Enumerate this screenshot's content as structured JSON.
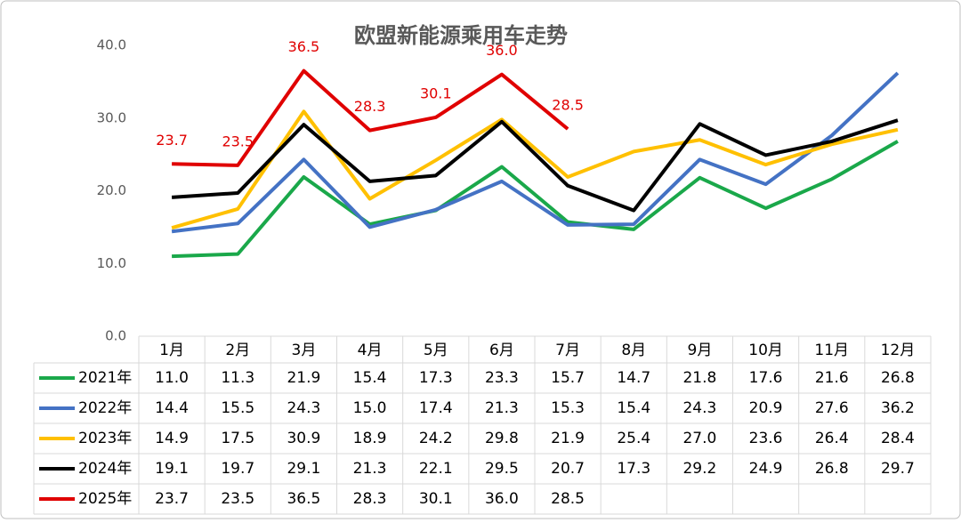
{
  "chart_data": {
    "type": "line",
    "title": "欧盟新能源乘用车走势",
    "categories": [
      "1月",
      "2月",
      "3月",
      "4月",
      "5月",
      "6月",
      "7月",
      "8月",
      "9月",
      "10月",
      "11月",
      "12月"
    ],
    "ylim": [
      0,
      40
    ],
    "yticks": [
      {
        "value": 0,
        "label": "0.0"
      },
      {
        "value": 10,
        "label": "10.0"
      },
      {
        "value": 20,
        "label": "20.0"
      },
      {
        "value": 30,
        "label": "30.0"
      },
      {
        "value": 40,
        "label": "40.0"
      }
    ],
    "series": [
      {
        "name": "2021年",
        "color": "#1aa84a",
        "values": [
          11.0,
          11.3,
          21.9,
          15.4,
          17.3,
          23.3,
          15.7,
          14.7,
          21.8,
          17.6,
          21.6,
          26.8
        ],
        "value_labels": [
          "11.0",
          "11.3",
          "21.9",
          "15.4",
          "17.3",
          "23.3",
          "15.7",
          "14.7",
          "21.8",
          "17.6",
          "21.6",
          "26.8"
        ]
      },
      {
        "name": "2022年",
        "color": "#4472c4",
        "values": [
          14.4,
          15.5,
          24.3,
          15.0,
          17.4,
          21.3,
          15.3,
          15.4,
          24.3,
          20.9,
          27.6,
          36.2
        ],
        "value_labels": [
          "14.4",
          "15.5",
          "24.3",
          "15.0",
          "17.4",
          "21.3",
          "15.3",
          "15.4",
          "24.3",
          "20.9",
          "27.6",
          "36.2"
        ]
      },
      {
        "name": "2023年",
        "color": "#ffc000",
        "values": [
          14.9,
          17.5,
          30.9,
          18.9,
          24.2,
          29.8,
          21.9,
          25.4,
          27.0,
          23.6,
          26.4,
          28.4
        ],
        "value_labels": [
          "14.9",
          "17.5",
          "30.9",
          "18.9",
          "24.2",
          "29.8",
          "21.9",
          "25.4",
          "27.0",
          "23.6",
          "26.4",
          "28.4"
        ]
      },
      {
        "name": "2024年",
        "color": "#000000",
        "values": [
          19.1,
          19.7,
          29.1,
          21.3,
          22.1,
          29.5,
          20.7,
          17.3,
          29.2,
          24.9,
          26.8,
          29.7
        ],
        "value_labels": [
          "19.1",
          "19.7",
          "29.1",
          "21.3",
          "22.1",
          "29.5",
          "20.7",
          "17.3",
          "29.2",
          "24.9",
          "26.8",
          "29.7"
        ]
      },
      {
        "name": "2025年",
        "color": "#e00000",
        "values": [
          23.7,
          23.5,
          36.5,
          28.3,
          30.1,
          36.0,
          28.5,
          null,
          null,
          null,
          null,
          null
        ],
        "value_labels": [
          "23.7",
          "23.5",
          "36.5",
          "28.3",
          "30.1",
          "36.0",
          "28.5",
          null,
          null,
          null,
          null,
          null
        ],
        "data_labels": true
      }
    ]
  }
}
